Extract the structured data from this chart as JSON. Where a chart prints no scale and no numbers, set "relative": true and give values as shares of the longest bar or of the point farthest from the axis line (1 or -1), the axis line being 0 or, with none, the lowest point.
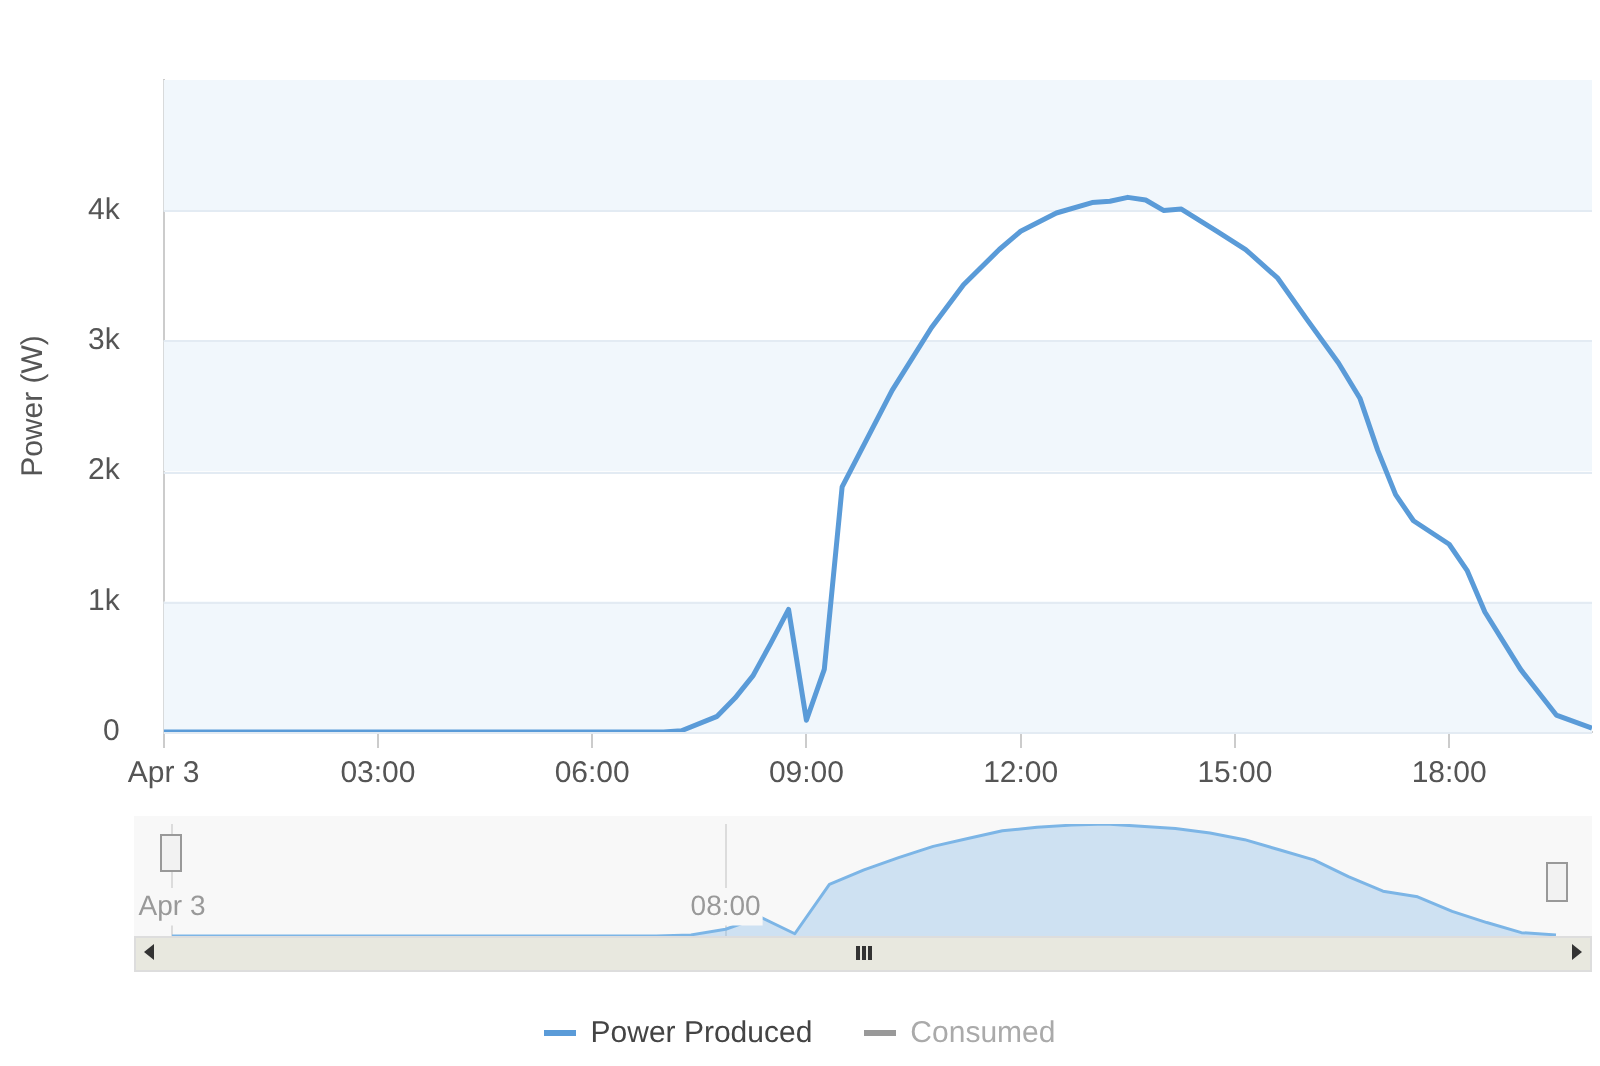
{
  "chart_data": [
    {
      "type": "line",
      "ylabel": "Power (W)",
      "xlim": [
        0,
        20
      ],
      "ylim": [
        0,
        5000
      ],
      "xticks": [
        {
          "value": 0,
          "label": "Apr 3"
        },
        {
          "value": 3,
          "label": "03:00"
        },
        {
          "value": 6,
          "label": "06:00"
        },
        {
          "value": 9,
          "label": "09:00"
        },
        {
          "value": 12,
          "label": "12:00"
        },
        {
          "value": 15,
          "label": "15:00"
        },
        {
          "value": 18,
          "label": "18:00"
        }
      ],
      "yticks": [
        0,
        {
          "value": 1000,
          "label": "1k"
        },
        {
          "value": 2000,
          "label": "2k"
        },
        {
          "value": 3000,
          "label": "3k"
        },
        {
          "value": 4000,
          "label": "4k"
        }
      ],
      "grid": "y",
      "legend": "bottom",
      "marker": "none",
      "line_style": "solid",
      "series": [
        {
          "name": "Power Produced",
          "color": "#5a9bd8",
          "x": [
            0,
            7,
            7.25,
            7.75,
            8,
            8.25,
            8.5,
            8.75,
            9,
            9.25,
            9.5,
            10.2,
            10.75,
            11.2,
            11.7,
            12,
            12.5,
            13,
            13.25,
            13.5,
            13.75,
            14,
            14.25,
            14.75,
            15.15,
            15.6,
            16,
            16.45,
            16.75,
            17,
            17.25,
            17.5,
            18,
            18.25,
            18.5,
            19,
            19.5,
            20
          ],
          "values": [
            0,
            0,
            10,
            120,
            260,
            430,
            680,
            940,
            90,
            480,
            1880,
            2620,
            3100,
            3430,
            3700,
            3840,
            3980,
            4060,
            4070,
            4100,
            4080,
            4000,
            4010,
            3840,
            3700,
            3480,
            3170,
            2830,
            2560,
            2160,
            1820,
            1620,
            1440,
            1240,
            920,
            480,
            130,
            30
          ]
        },
        {
          "name": "Consumed",
          "color": "#999999"
        }
      ]
    },
    {
      "type": "area",
      "relative": true,
      "categories": [
        "Apr 3",
        null,
        null,
        null,
        null,
        null,
        null,
        null,
        null,
        null,
        null,
        null,
        null,
        null,
        null,
        null,
        "08:00",
        null,
        null,
        null,
        null,
        null,
        null,
        null,
        null,
        null,
        null,
        null,
        null,
        null,
        null,
        null,
        null,
        null,
        null,
        null,
        null,
        null,
        null,
        null,
        null
      ],
      "grid": "x",
      "marker": "none",
      "series": [
        {
          "color": "#7cb5e6",
          "values": [
            0,
            0,
            0,
            0,
            0,
            0,
            0,
            0,
            0,
            0,
            0,
            0,
            0,
            0,
            0,
            0.01,
            0.06,
            0.17,
            0.02,
            0.46,
            0.59,
            0.7,
            0.8,
            0.87,
            0.94,
            0.97,
            0.99,
            1,
            0.98,
            0.96,
            0.92,
            0.86,
            0.77,
            0.68,
            0.53,
            0.4,
            0.35,
            0.22,
            0.12,
            0.03,
            0.01
          ]
        }
      ]
    }
  ]
}
